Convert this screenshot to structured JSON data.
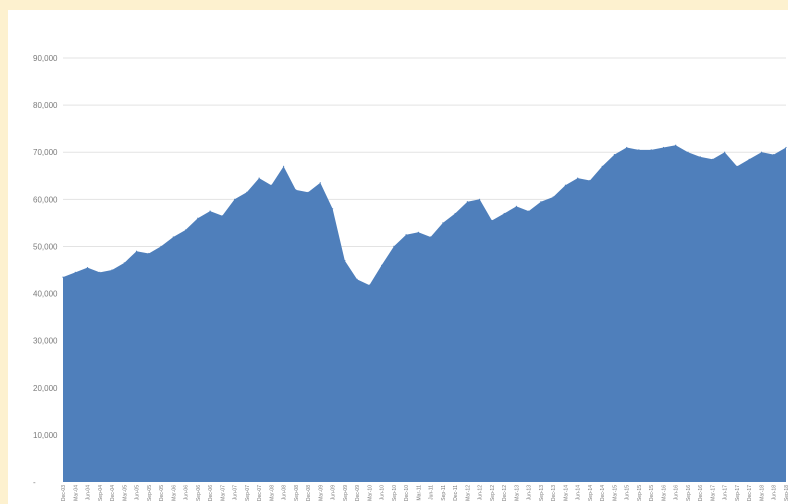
{
  "chart_data": {
    "type": "area",
    "title": "",
    "xlabel": "",
    "ylabel": "",
    "ylim": [
      0,
      90000
    ],
    "y_ticks": [
      {
        "value": 0,
        "label": "-"
      },
      {
        "value": 10000,
        "label": "10,000"
      },
      {
        "value": 20000,
        "label": "20,000"
      },
      {
        "value": 30000,
        "label": "30,000"
      },
      {
        "value": 40000,
        "label": "40,000"
      },
      {
        "value": 50000,
        "label": "50,000"
      },
      {
        "value": 60000,
        "label": "60,000"
      },
      {
        "value": 70000,
        "label": "70,000"
      },
      {
        "value": 80000,
        "label": "80,000"
      },
      {
        "value": 90000,
        "label": "90,000"
      }
    ],
    "grid": true,
    "legend": "none",
    "color": "#4f7fbb",
    "series": [
      {
        "x": [
          "Dec-03",
          "Mar-04",
          "Jun-04",
          "Sep-04",
          "Dec-04",
          "Mar-05",
          "Jun-05",
          "Sep-05",
          "Dec-05",
          "Mar-06",
          "Jun-06",
          "Sep-06",
          "Dec-06",
          "Mar-07",
          "Jun-07",
          "Sep-07",
          "Dec-07",
          "Mar-08",
          "Jun-08",
          "Sep-08",
          "Dec-08",
          "Mar-09",
          "Jun-09",
          "Sep-09",
          "Dec-09",
          "Mar-10",
          "Jun-10",
          "Sep-10",
          "Dec-10",
          "Mar-11",
          "Jun-11",
          "Sep-11",
          "Dec-11",
          "Mar-12",
          "Jun-12",
          "Sep-12",
          "Dec-12",
          "Mar-13",
          "Jun-13",
          "Sep-13",
          "Dec-13",
          "Mar-14",
          "Jun-14",
          "Sep-14",
          "Dec-14",
          "Mar-15",
          "Jun-15",
          "Sep-15",
          "Dec-15",
          "Mar-16",
          "Jun-16",
          "Sep-16",
          "Dec-16",
          "Mar-17",
          "Jun-17",
          "Sep-17",
          "Dec-17",
          "Mar-18",
          "Jun-18",
          "Sep-18"
        ],
        "values": [
          43500,
          44500,
          45500,
          44500,
          45000,
          46500,
          49000,
          48500,
          50000,
          52000,
          53500,
          56000,
          57500,
          56500,
          60000,
          61500,
          64500,
          63000,
          67000,
          62000,
          61500,
          63500,
          58000,
          47000,
          43000,
          41800,
          46000,
          50000,
          52500,
          53000,
          52000,
          55000,
          57000,
          59500,
          60000,
          55500,
          57000,
          58500,
          57500,
          59500,
          60500,
          63000,
          64500,
          64000,
          67000,
          69500,
          71000,
          70500,
          70500,
          71000,
          71500,
          70000,
          69000,
          68500,
          70000,
          67000,
          68500,
          70000,
          69500,
          71000
        ]
      }
    ]
  }
}
